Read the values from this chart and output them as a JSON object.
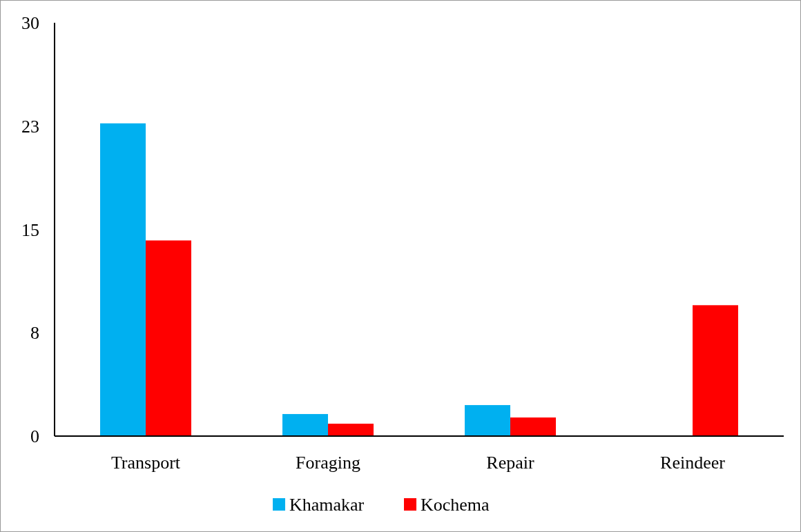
{
  "chart_data": {
    "type": "bar",
    "categories": [
      "Transport",
      "Foraging",
      "Repair",
      "Reindeer"
    ],
    "series": [
      {
        "name": "Khamakar",
        "color": "#00b0f0",
        "values": [
          22.7,
          1.6,
          2.25,
          0
        ]
      },
      {
        "name": "Kochema",
        "color": "#ff0000",
        "values": [
          14.2,
          0.9,
          1.35,
          9.5
        ]
      }
    ],
    "ylim": [
      0,
      30
    ],
    "yticks": [
      0,
      {
        "value": 7.5,
        "label": "8"
      },
      15,
      {
        "value": 22.5,
        "label": "23"
      },
      30
    ],
    "grid": false,
    "legend": "bottom"
  }
}
